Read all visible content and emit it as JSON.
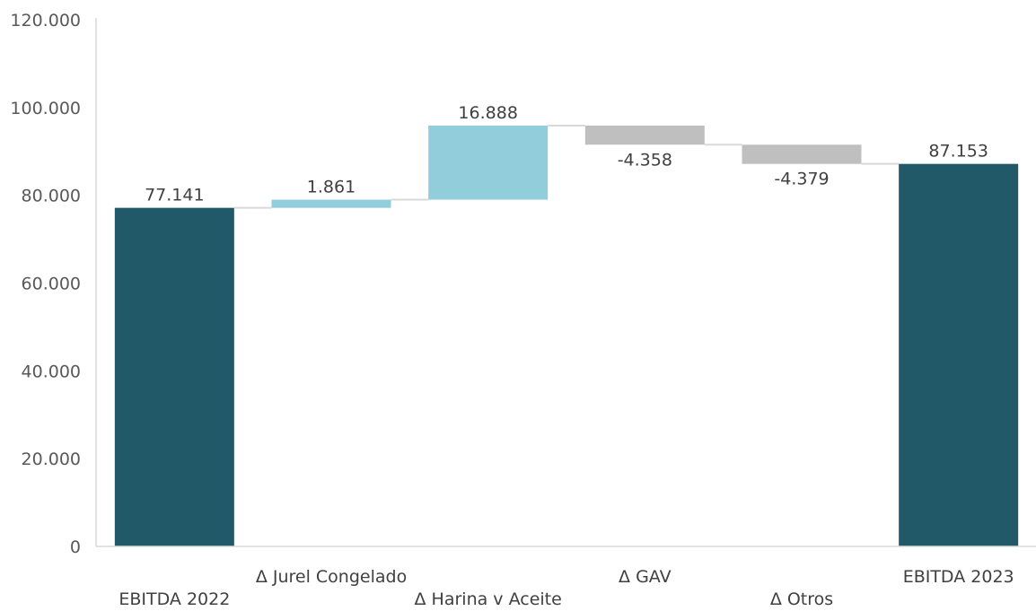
{
  "chart_data": {
    "type": "bar",
    "subtype": "waterfall",
    "title": "",
    "xlabel": "",
    "ylabel": "",
    "ylim": [
      0,
      120000
    ],
    "y_ticks": [
      0,
      20000,
      40000,
      60000,
      80000,
      100000,
      120000
    ],
    "y_tick_labels": [
      "0",
      "20.000",
      "40.000",
      "60.000",
      "80.000",
      "100.000",
      "120.000"
    ],
    "grid": false,
    "legend": "none",
    "categories": [
      "EBITDA 2022",
      "Δ Jurel Congelado",
      "Δ Harina v Aceite",
      "Δ GAV",
      "Δ Otros",
      "EBITDA 2023"
    ],
    "values": [
      77141,
      1861,
      16888,
      -4358,
      -4379,
      87153
    ],
    "value_labels": [
      "77.141",
      "1.861",
      "16.888",
      "-4.358",
      "-4.379",
      "87.153"
    ],
    "kinds": [
      "total",
      "increase",
      "increase",
      "decrease",
      "decrease",
      "total"
    ],
    "colors": {
      "total": "#215968",
      "increase": "#92CDDC",
      "decrease": "#BFBFBF",
      "connector": "#D9D9D9",
      "axis": "#D9D9D9"
    }
  }
}
